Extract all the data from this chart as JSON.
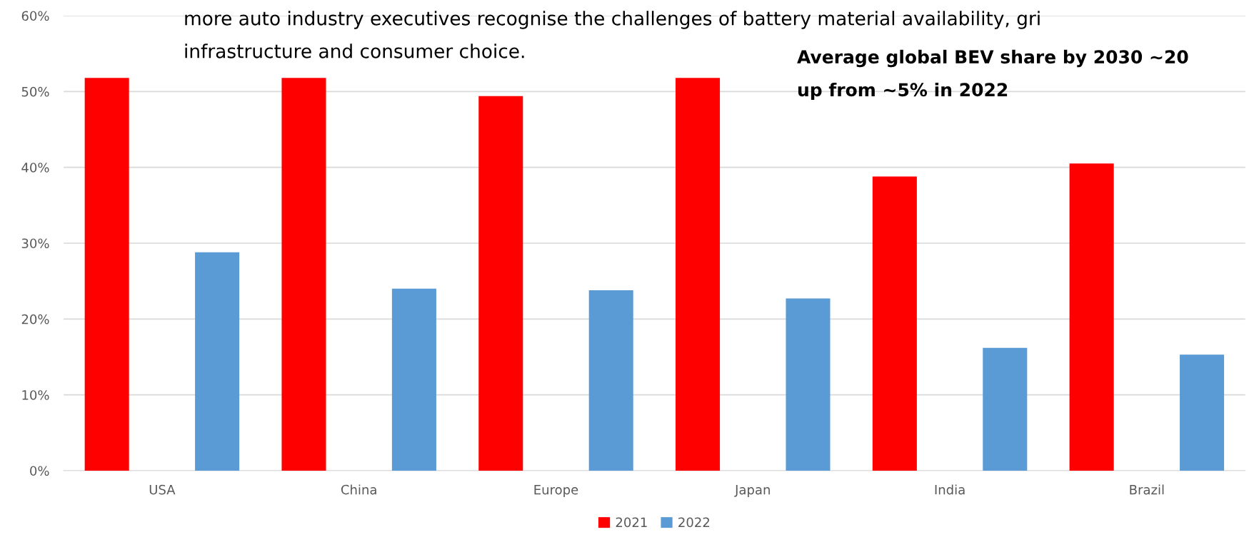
{
  "chart_data": {
    "type": "bar",
    "categories": [
      "USA",
      "China",
      "Europe",
      "Japan",
      "India",
      "Brazil"
    ],
    "series": [
      {
        "name": "2021",
        "color": "#ff0000",
        "values": [
          51.8,
          51.8,
          49.4,
          51.8,
          38.8,
          40.5
        ]
      },
      {
        "name": "2022",
        "color": "#5b9bd5",
        "values": [
          28.8,
          24.0,
          23.8,
          22.7,
          16.2,
          15.3
        ]
      }
    ],
    "ylim": [
      0,
      60
    ],
    "yticks": [
      {
        "value": 0,
        "label": "0%"
      },
      {
        "value": 10,
        "label": "10%"
      },
      {
        "value": 20,
        "label": "20%"
      },
      {
        "value": 30,
        "label": "30%"
      },
      {
        "value": 40,
        "label": "40%"
      },
      {
        "value": 50,
        "label": "50%"
      },
      {
        "value": 60,
        "label": "60%"
      }
    ],
    "grid": "y",
    "legend": "bottom",
    "annotations": [
      "more auto industry executives recognise the challenges of battery material availability, gri",
      "infrastructure and consumer choice.",
      "Average global BEV share by 2030 ~20",
      "up from ~5% in 2022"
    ]
  }
}
